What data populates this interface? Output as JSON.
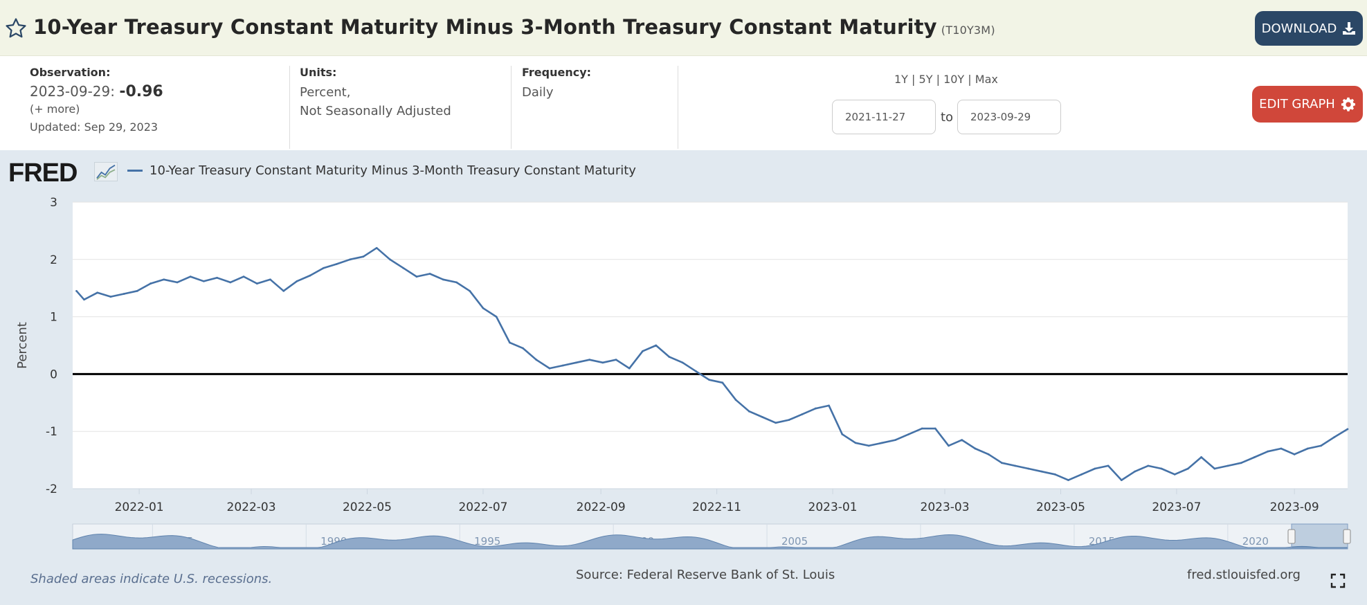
{
  "header": {
    "title": "10-Year Treasury Constant Maturity Minus 3-Month Treasury Constant Maturity",
    "series_id": "(T10Y3M)",
    "download_label": "DOWNLOAD"
  },
  "meta": {
    "observation_label": "Observation:",
    "observation_date": "2023-09-29:",
    "observation_value": "-0.96",
    "more_link": "(+ more)",
    "updated": "Updated: Sep 29, 2023",
    "units_label": "Units:",
    "units_line1": "Percent,",
    "units_line2": "Not Seasonally Adjusted",
    "frequency_label": "Frequency:",
    "frequency_value": "Daily",
    "range_1y": "1Y",
    "range_5y": "5Y",
    "range_10y": "10Y",
    "range_max": "Max",
    "range_sep": "|",
    "start_date": "2021-11-27",
    "to_label": "to",
    "end_date": "2023-09-29",
    "edit_label": "EDIT GRAPH"
  },
  "footer": {
    "recession_note": "Shaded areas indicate U.S. recessions.",
    "source": "Source: Federal Reserve Bank of St. Louis",
    "url": "fred.stlouisfed.org"
  },
  "logo_text": "FRED",
  "colors": {
    "series": "#4572a7",
    "zero_line": "#000000",
    "download_bg": "#2b4766",
    "edit_bg": "#d0473a",
    "panel_bg": "#e1e9f0",
    "navigator_fill": "#8fa9c9"
  },
  "icons": [
    "star-icon",
    "download-icon",
    "gear-icon",
    "fullscreen-icon"
  ],
  "chart_data": {
    "type": "line",
    "title": "",
    "xlabel": "",
    "ylabel": "Percent",
    "ylim": [
      -2,
      3
    ],
    "xlim": [
      "2021-11-27",
      "2023-09-29"
    ],
    "yticks": [
      "3",
      "2",
      "1",
      "0",
      "-1",
      "-2"
    ],
    "xticks": [
      "2022-01",
      "2022-03",
      "2022-05",
      "2022-07",
      "2022-09",
      "2022-11",
      "2023-01",
      "2023-03",
      "2023-05",
      "2023-07",
      "2023-09"
    ],
    "grid": true,
    "legend_position": "top-left",
    "series": [
      {
        "name": "10-Year Treasury Constant Maturity Minus 3-Month Treasury Constant Maturity",
        "points": [
          [
            "2021-11-29",
            1.45
          ],
          [
            "2021-12-03",
            1.3
          ],
          [
            "2021-12-10",
            1.42
          ],
          [
            "2021-12-17",
            1.35
          ],
          [
            "2021-12-24",
            1.4
          ],
          [
            "2021-12-31",
            1.45
          ],
          [
            "2022-01-07",
            1.58
          ],
          [
            "2022-01-14",
            1.65
          ],
          [
            "2022-01-21",
            1.6
          ],
          [
            "2022-01-28",
            1.7
          ],
          [
            "2022-02-04",
            1.62
          ],
          [
            "2022-02-11",
            1.68
          ],
          [
            "2022-02-18",
            1.6
          ],
          [
            "2022-02-25",
            1.7
          ],
          [
            "2022-03-04",
            1.58
          ],
          [
            "2022-03-11",
            1.65
          ],
          [
            "2022-03-18",
            1.45
          ],
          [
            "2022-03-25",
            1.62
          ],
          [
            "2022-04-01",
            1.72
          ],
          [
            "2022-04-08",
            1.85
          ],
          [
            "2022-04-15",
            1.92
          ],
          [
            "2022-04-22",
            2.0
          ],
          [
            "2022-04-29",
            2.05
          ],
          [
            "2022-05-06",
            2.2
          ],
          [
            "2022-05-13",
            2.0
          ],
          [
            "2022-05-20",
            1.85
          ],
          [
            "2022-05-27",
            1.7
          ],
          [
            "2022-06-03",
            1.75
          ],
          [
            "2022-06-10",
            1.65
          ],
          [
            "2022-06-17",
            1.6
          ],
          [
            "2022-06-24",
            1.45
          ],
          [
            "2022-07-01",
            1.15
          ],
          [
            "2022-07-08",
            1.0
          ],
          [
            "2022-07-15",
            0.55
          ],
          [
            "2022-07-22",
            0.45
          ],
          [
            "2022-07-29",
            0.25
          ],
          [
            "2022-08-05",
            0.1
          ],
          [
            "2022-08-12",
            0.15
          ],
          [
            "2022-08-19",
            0.2
          ],
          [
            "2022-08-26",
            0.25
          ],
          [
            "2022-09-02",
            0.2
          ],
          [
            "2022-09-09",
            0.25
          ],
          [
            "2022-09-16",
            0.1
          ],
          [
            "2022-09-23",
            0.4
          ],
          [
            "2022-09-30",
            0.5
          ],
          [
            "2022-10-07",
            0.3
          ],
          [
            "2022-10-14",
            0.2
          ],
          [
            "2022-10-21",
            0.05
          ],
          [
            "2022-10-28",
            -0.1
          ],
          [
            "2022-11-04",
            -0.15
          ],
          [
            "2022-11-11",
            -0.45
          ],
          [
            "2022-11-18",
            -0.65
          ],
          [
            "2022-11-25",
            -0.75
          ],
          [
            "2022-12-02",
            -0.85
          ],
          [
            "2022-12-09",
            -0.8
          ],
          [
            "2022-12-16",
            -0.7
          ],
          [
            "2022-12-23",
            -0.6
          ],
          [
            "2022-12-30",
            -0.55
          ],
          [
            "2023-01-06",
            -1.05
          ],
          [
            "2023-01-13",
            -1.2
          ],
          [
            "2023-01-20",
            -1.25
          ],
          [
            "2023-01-27",
            -1.2
          ],
          [
            "2023-02-03",
            -1.15
          ],
          [
            "2023-02-10",
            -1.05
          ],
          [
            "2023-02-17",
            -0.95
          ],
          [
            "2023-02-24",
            -0.95
          ],
          [
            "2023-03-03",
            -1.25
          ],
          [
            "2023-03-10",
            -1.15
          ],
          [
            "2023-03-17",
            -1.3
          ],
          [
            "2023-03-24",
            -1.4
          ],
          [
            "2023-03-31",
            -1.55
          ],
          [
            "2023-04-07",
            -1.6
          ],
          [
            "2023-04-14",
            -1.65
          ],
          [
            "2023-04-21",
            -1.7
          ],
          [
            "2023-04-28",
            -1.75
          ],
          [
            "2023-05-05",
            -1.85
          ],
          [
            "2023-05-12",
            -1.75
          ],
          [
            "2023-05-19",
            -1.65
          ],
          [
            "2023-05-26",
            -1.6
          ],
          [
            "2023-06-02",
            -1.85
          ],
          [
            "2023-06-09",
            -1.7
          ],
          [
            "2023-06-16",
            -1.6
          ],
          [
            "2023-06-23",
            -1.65
          ],
          [
            "2023-06-30",
            -1.75
          ],
          [
            "2023-07-07",
            -1.65
          ],
          [
            "2023-07-14",
            -1.45
          ],
          [
            "2023-07-21",
            -1.65
          ],
          [
            "2023-07-28",
            -1.6
          ],
          [
            "2023-08-04",
            -1.55
          ],
          [
            "2023-08-11",
            -1.45
          ],
          [
            "2023-08-18",
            -1.35
          ],
          [
            "2023-08-25",
            -1.3
          ],
          [
            "2023-09-01",
            -1.4
          ],
          [
            "2023-09-08",
            -1.3
          ],
          [
            "2023-09-15",
            -1.25
          ],
          [
            "2023-09-22",
            -1.1
          ],
          [
            "2023-09-29",
            -0.96
          ]
        ]
      }
    ],
    "navigator_ticks": [
      "1985",
      "1990",
      "1995",
      "2000",
      "2005",
      "2010",
      "2015",
      "2020"
    ]
  }
}
